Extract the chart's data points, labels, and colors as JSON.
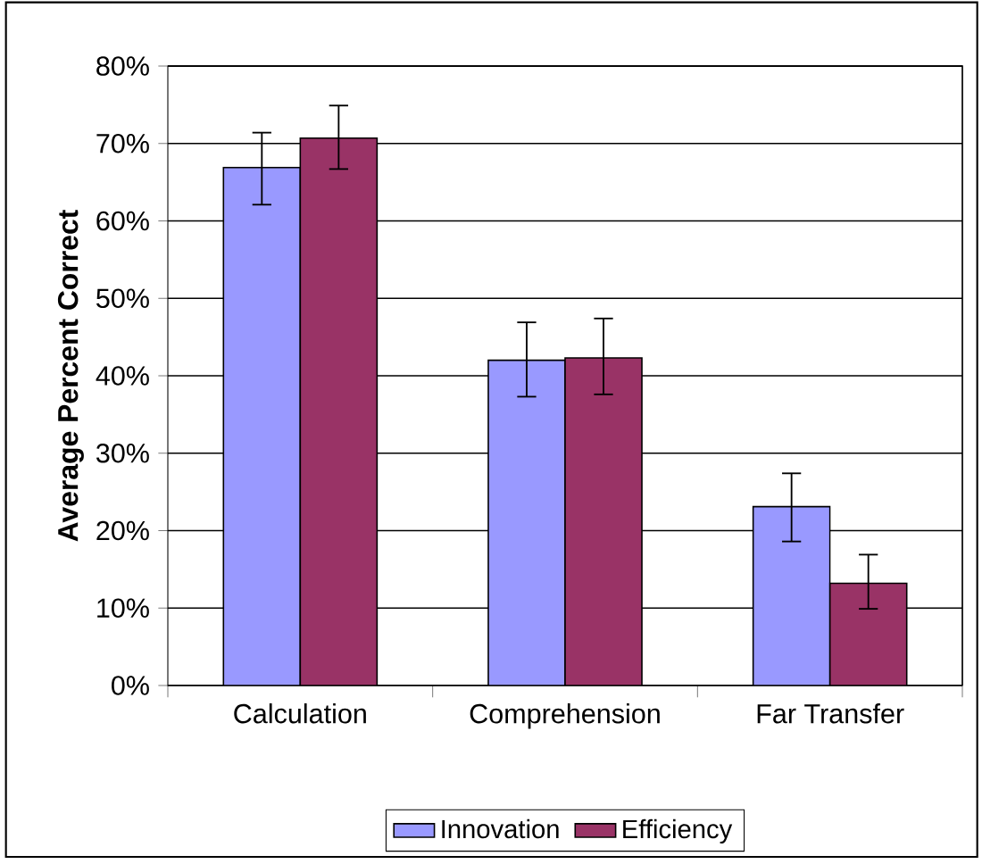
{
  "chart_data": {
    "type": "bar",
    "ylabel": "Average Percent Correct",
    "categories": [
      "Calculation",
      "Comprehension",
      "Far Transfer"
    ],
    "series": [
      {
        "name": "Innovation",
        "color": "#9999ff",
        "values": [
          66.9,
          42.0,
          23.1
        ],
        "errors": [
          [
            62.1,
            71.4
          ],
          [
            37.3,
            46.9
          ],
          [
            18.6,
            27.4
          ]
        ]
      },
      {
        "name": "Efficiency",
        "color": "#993366",
        "values": [
          70.7,
          42.3,
          13.2
        ],
        "errors": [
          [
            66.7,
            74.9
          ],
          [
            37.6,
            47.4
          ],
          [
            9.9,
            16.9
          ]
        ]
      }
    ],
    "ylim": [
      0,
      80
    ],
    "yticks": [
      {
        "value": 0,
        "label": "0%"
      },
      {
        "value": 10,
        "label": "10%"
      },
      {
        "value": 20,
        "label": "20%"
      },
      {
        "value": 30,
        "label": "30%"
      },
      {
        "value": 40,
        "label": "40%"
      },
      {
        "value": 50,
        "label": "50%"
      },
      {
        "value": 60,
        "label": "60%"
      },
      {
        "value": 70,
        "label": "70%"
      },
      {
        "value": 80,
        "label": "80%"
      }
    ],
    "grid": "y",
    "legend": "bottom"
  }
}
